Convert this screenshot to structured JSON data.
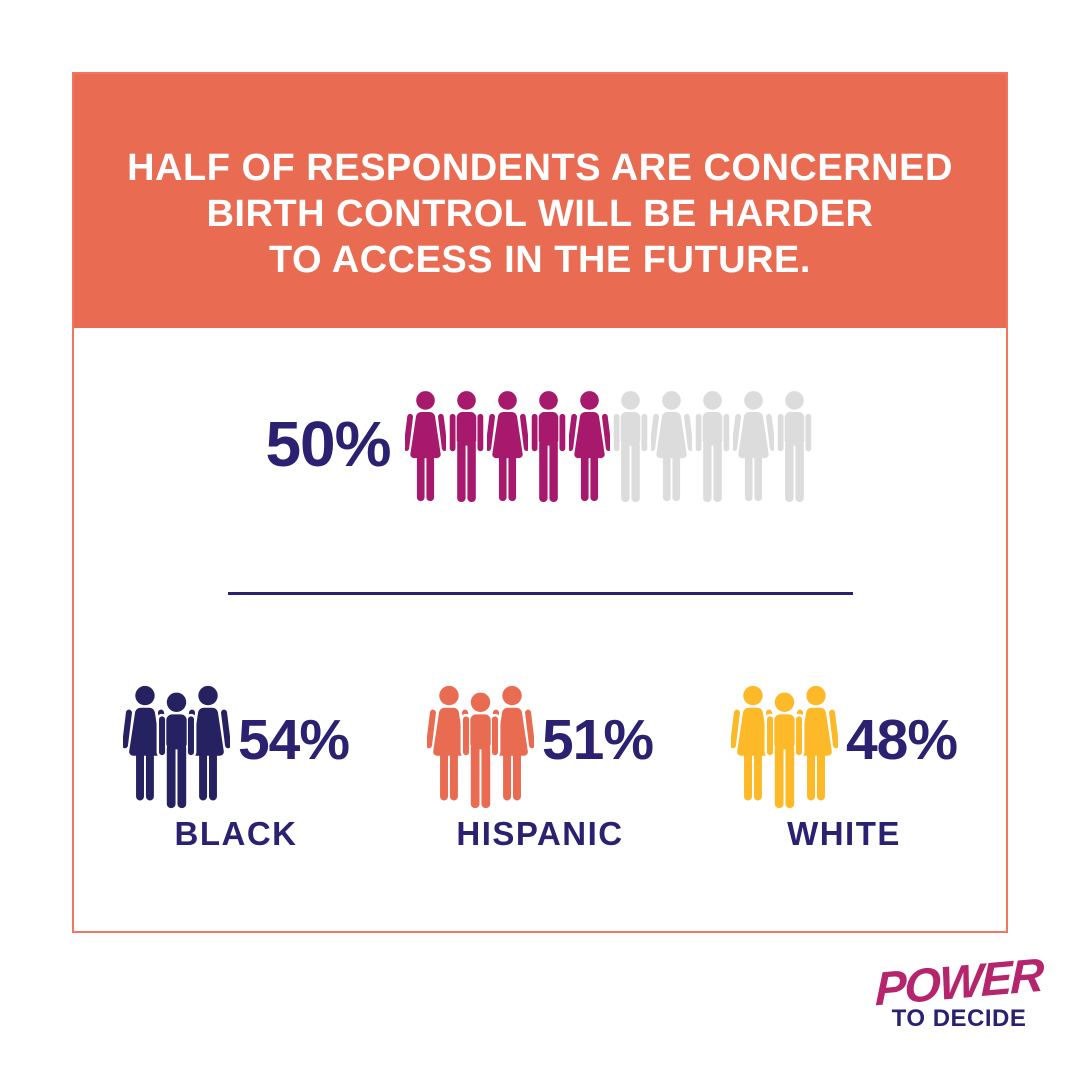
{
  "header": {
    "lines": [
      "HALF OF RESPONDENTS ARE CONCERNED",
      "BIRTH CONTROL WILL BE HARDER",
      "TO ACCESS IN THE FUTURE."
    ],
    "background": "#E96B52",
    "text_color": "#FFFFFF"
  },
  "chart_data": {
    "type": "pictogram",
    "title": "HALF OF RESPONDENTS ARE CONCERNED BIRTH CONTROL WILL BE HARDER TO ACCESS IN THE FUTURE.",
    "overall": {
      "pct_label": "50%",
      "value": 50,
      "icons_total": 10,
      "icons_filled": 5,
      "icon_pattern": [
        "woman",
        "man",
        "woman",
        "man",
        "woman",
        "man",
        "woman",
        "man",
        "woman",
        "man"
      ],
      "filled_color": "#A7196D",
      "empty_color": "#DCDCDC"
    },
    "groups": [
      {
        "label": "BLACK",
        "pct_label": "54%",
        "value": 54,
        "color": "#262262"
      },
      {
        "label": "HISPANIC",
        "pct_label": "51%",
        "value": 51,
        "color": "#E96B52"
      },
      {
        "label": "WHITE",
        "pct_label": "48%",
        "value": 48,
        "color": "#FDB927"
      }
    ],
    "legend_position": "none",
    "grid": false
  },
  "footer": {
    "logo_line1": "POWER",
    "logo_line2": "TO DECIDE",
    "logo_line1_color": "#B5256D",
    "logo_line2_color": "#2B2171"
  },
  "colors": {
    "navy_text": "#2B2171",
    "card_border": "#F0765F",
    "divider": "#2B2171"
  }
}
